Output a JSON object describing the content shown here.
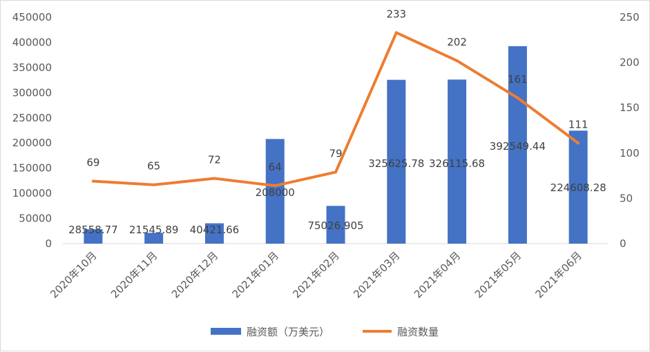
{
  "chart_data": {
    "type": "bar+line",
    "categories": [
      "2020年10月",
      "2020年11月",
      "2020年12月",
      "2021年01月",
      "2021年02月",
      "2021年03月",
      "2021年04月",
      "2021年05月",
      "2021年06月"
    ],
    "series": [
      {
        "name": "融资额（万美元）",
        "type": "bar",
        "axis": "left",
        "color": "#4472C4",
        "values": [
          28558.77,
          21545.89,
          40421.66,
          208000,
          75026.905,
          325625.78,
          326115.68,
          392549.44,
          224608.28
        ],
        "labels": [
          "28558.77",
          "21545.89",
          "40421.66",
          "208000",
          "75026.905",
          "325625.78",
          "326115.68",
          "392549.44",
          "224608.28"
        ]
      },
      {
        "name": "融资数量",
        "type": "line",
        "axis": "right",
        "color": "#ED7D31",
        "values": [
          69,
          65,
          72,
          64,
          79,
          233,
          202,
          161,
          111
        ],
        "labels": [
          "69",
          "65",
          "72",
          "64",
          "79",
          "233",
          "202",
          "161",
          "111"
        ]
      }
    ],
    "left_axis": {
      "ylim": [
        0,
        450000
      ],
      "ticks": [
        "0",
        "50000",
        "100000",
        "150000",
        "200000",
        "250000",
        "300000",
        "350000",
        "400000",
        "450000"
      ]
    },
    "right_axis": {
      "ylim": [
        0,
        250
      ],
      "ticks": [
        "0",
        "50",
        "100",
        "150",
        "200",
        "250"
      ]
    },
    "grid": false,
    "legend": "bottom"
  }
}
